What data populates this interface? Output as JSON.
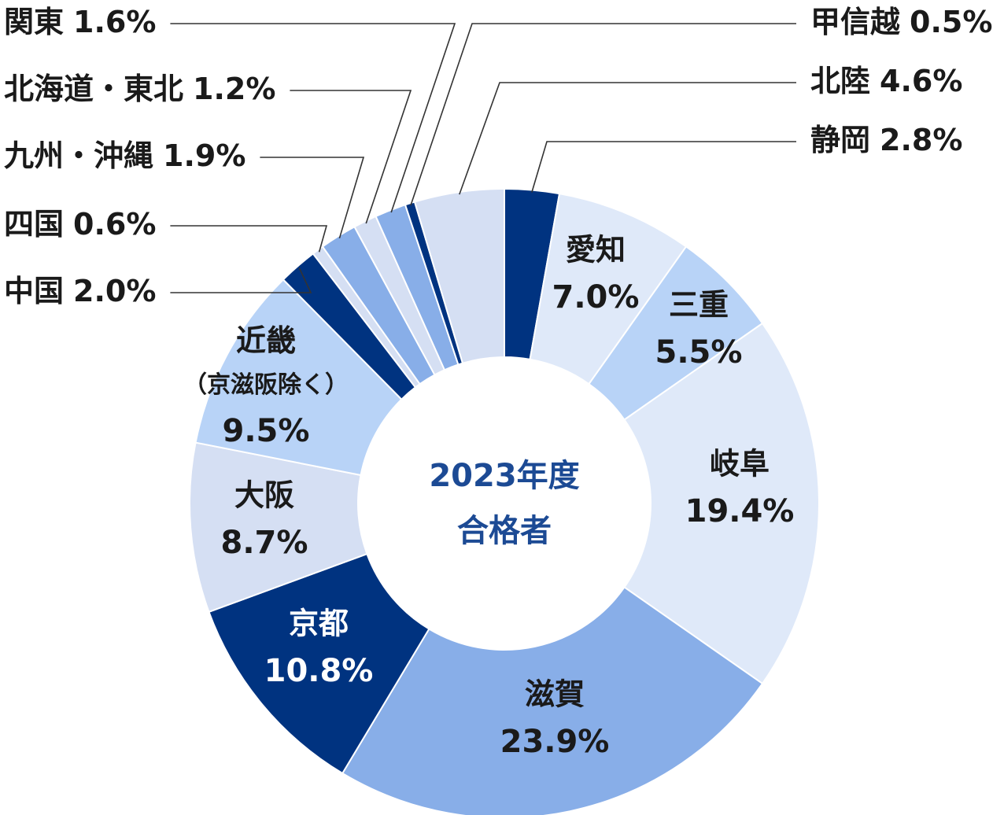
{
  "chart_data": {
    "type": "donut",
    "center_label": [
      "2023年度",
      "合格者"
    ],
    "categories": [
      "静岡",
      "愛知",
      "三重",
      "岐阜",
      "滋賀",
      "京都",
      "大阪",
      "近畿（京滋阪除く）",
      "中国",
      "四国",
      "九州・沖縄",
      "北海道・東北",
      "関東",
      "甲信越",
      "北陸"
    ],
    "values": [
      2.8,
      7.0,
      5.5,
      19.4,
      23.9,
      10.8,
      8.7,
      9.5,
      2.0,
      0.6,
      1.9,
      1.2,
      1.6,
      0.5,
      4.6
    ],
    "value_labels": [
      "2.8%",
      "7.0%",
      "5.5%",
      "19.4%",
      "23.9%",
      "10.8%",
      "8.7%",
      "9.5%",
      "2.0%",
      "0.6%",
      "1.9%",
      "1.2%",
      "1.6%",
      "0.5%",
      "4.6%"
    ],
    "colors": [
      "#003380",
      "#dfe9f9",
      "#b8d3f7",
      "#dfe9f9",
      "#88aee8",
      "#003380",
      "#d5dff3",
      "#b8d3f7",
      "#003380",
      "#d5dff3",
      "#88aee8",
      "#d5dff3",
      "#88aee8",
      "#003380",
      "#d5dff3"
    ]
  }
}
